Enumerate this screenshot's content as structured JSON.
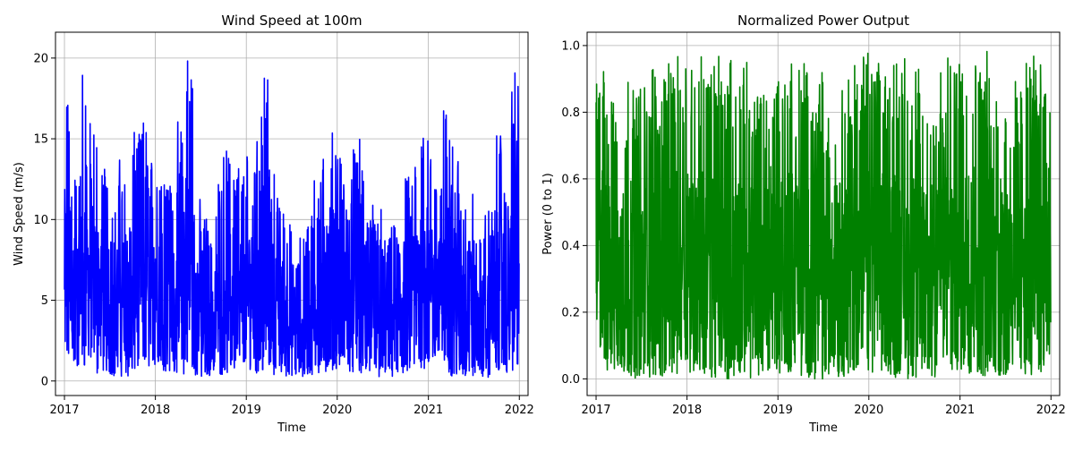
{
  "chart_data": [
    {
      "type": "line",
      "title": "Wind Speed at 100m",
      "xlabel": "Time",
      "ylabel": "Wind Speed (m/s)",
      "x_range": [
        "2016-11-26",
        "2022-02-05"
      ],
      "x_ticks": [
        "2017",
        "2018",
        "2019",
        "2020",
        "2021",
        "2022"
      ],
      "ylim": [
        -0.9,
        21.6
      ],
      "y_ticks": [
        0,
        5,
        10,
        15,
        20
      ],
      "grid": true,
      "color": "#0000ff",
      "series": [
        {
          "x": [
            "2017-01-01",
            "2017-02-01",
            "2017-03-01",
            "2017-04-01",
            "2017-05-01",
            "2017-06-01",
            "2017-07-01",
            "2017-08-01",
            "2017-09-01",
            "2017-10-01",
            "2017-11-01",
            "2017-12-01",
            "2018-01-01",
            "2018-02-01",
            "2018-03-01",
            "2018-04-01",
            "2018-05-01",
            "2018-06-01",
            "2018-07-01",
            "2018-08-01",
            "2018-09-01",
            "2018-10-01",
            "2018-11-01",
            "2018-12-01",
            "2019-01-01",
            "2019-02-01",
            "2019-03-01",
            "2019-04-01",
            "2019-05-01",
            "2019-06-01",
            "2019-07-01",
            "2019-08-01",
            "2019-09-01",
            "2019-10-01",
            "2019-11-01",
            "2019-12-01",
            "2020-01-01",
            "2020-02-01",
            "2020-03-01",
            "2020-04-01",
            "2020-05-01",
            "2020-06-01",
            "2020-07-01",
            "2020-08-01",
            "2020-09-01",
            "2020-10-01",
            "2020-11-01",
            "2020-12-01",
            "2021-01-01",
            "2021-02-01",
            "2021-03-01",
            "2021-04-01",
            "2021-05-01",
            "2021-06-01",
            "2021-07-01",
            "2021-08-01",
            "2021-09-01",
            "2021-10-01",
            "2021-11-01",
            "2021-12-01"
          ],
          "max": [
            17.6,
            13.7,
            20.4,
            16.2,
            15.1,
            13.8,
            11.0,
            13.8,
            11.4,
            15.4,
            16.3,
            14.0,
            14.9,
            13.8,
            12.7,
            16.2,
            20.6,
            11.4,
            10.5,
            8.9,
            12.4,
            14.3,
            14.7,
            13.5,
            14.2,
            15.3,
            18.8,
            13.3,
            11.8,
            9.8,
            7.5,
            9.4,
            10.3,
            12.8,
            14.5,
            16.2,
            14.0,
            12.6,
            15.0,
            13.1,
            11.3,
            10.9,
            8.9,
            9.7,
            10.2,
            12.8,
            13.8,
            18.1,
            14.0,
            13.6,
            17.1,
            14.5,
            11.9,
            13.6,
            8.9,
            10.6,
            11.4,
            15.9,
            11.8,
            19.1
          ],
          "min": [
            1.3,
            0.7,
            0.8,
            1.0,
            0.4,
            0.5,
            0.3,
            0.3,
            0.2,
            0.6,
            0.7,
            0.8,
            0.9,
            0.6,
            0.5,
            0.4,
            0.3,
            0.3,
            0.2,
            0.3,
            0.4,
            0.5,
            0.6,
            0.9,
            0.7,
            0.5,
            0.5,
            0.4,
            0.3,
            0.2,
            0.3,
            0.2,
            0.3,
            0.4,
            0.5,
            0.7,
            0.8,
            0.6,
            0.5,
            0.4,
            0.3,
            0.2,
            0.3,
            0.2,
            0.3,
            0.4,
            0.6,
            0.7,
            0.8,
            0.5,
            0.4,
            0.3,
            0.2,
            0.2,
            0.3,
            0.2,
            0.3,
            0.4,
            0.5,
            0.6
          ]
        }
      ]
    },
    {
      "type": "line",
      "title": "Normalized Power Output",
      "xlabel": "Time",
      "ylabel": "Power (0 to 1)",
      "x_range": [
        "2016-11-26",
        "2022-02-05"
      ],
      "x_ticks": [
        "2017",
        "2018",
        "2019",
        "2020",
        "2021",
        "2022"
      ],
      "ylim": [
        -0.05,
        1.04
      ],
      "y_ticks": [
        "0.0",
        "0.2",
        "0.4",
        "0.6",
        "0.8",
        "1.0"
      ],
      "grid": true,
      "color": "#008000",
      "series": [
        {
          "x": [
            "2017-01-01",
            "2017-02-01",
            "2017-03-01",
            "2017-04-01",
            "2017-05-01",
            "2017-06-01",
            "2017-07-01",
            "2017-08-01",
            "2017-09-01",
            "2017-10-01",
            "2017-11-01",
            "2017-12-01",
            "2018-01-01",
            "2018-02-01",
            "2018-03-01",
            "2018-04-01",
            "2018-05-01",
            "2018-06-01",
            "2018-07-01",
            "2018-08-01",
            "2018-09-01",
            "2018-10-01",
            "2018-11-01",
            "2018-12-01",
            "2019-01-01",
            "2019-02-01",
            "2019-03-01",
            "2019-04-01",
            "2019-05-01",
            "2019-06-01",
            "2019-07-01",
            "2019-08-01",
            "2019-09-01",
            "2019-10-01",
            "2019-11-01",
            "2019-12-01",
            "2020-01-01",
            "2020-02-01",
            "2020-03-01",
            "2020-04-01",
            "2020-05-01",
            "2020-06-01",
            "2020-07-01",
            "2020-08-01",
            "2020-09-01",
            "2020-10-01",
            "2020-11-01",
            "2020-12-01",
            "2021-01-01",
            "2021-02-01",
            "2021-03-01",
            "2021-04-01",
            "2021-05-01",
            "2021-06-01",
            "2021-07-01",
            "2021-08-01",
            "2021-09-01",
            "2021-10-01",
            "2021-11-01",
            "2021-12-01"
          ],
          "max": [
            0.93,
            0.92,
            0.84,
            0.89,
            0.91,
            0.88,
            0.92,
            0.95,
            0.9,
            0.96,
            0.97,
            0.98,
            0.98,
            0.98,
            0.97,
            0.98,
            0.97,
            0.97,
            0.9,
            0.96,
            0.93,
            0.88,
            0.91,
            0.97,
            0.96,
            0.97,
            0.95,
            0.96,
            0.94,
            0.97,
            0.82,
            0.92,
            0.93,
            0.9,
            0.97,
            0.98,
            0.97,
            0.95,
            0.97,
            0.96,
            0.97,
            0.95,
            0.93,
            0.87,
            0.91,
            0.92,
            0.97,
            0.98,
            0.98,
            0.98,
            0.98,
            0.99,
            0.98,
            0.94,
            0.88,
            0.9,
            0.95,
            0.97,
            0.98,
            0.99
          ],
          "min": [
            0.08,
            0.02,
            0.02,
            0.01,
            0.01,
            0.0,
            0.0,
            0.0,
            0.0,
            0.01,
            0.01,
            0.02,
            0.02,
            0.01,
            0.01,
            0.0,
            0.0,
            0.0,
            0.0,
            0.0,
            0.0,
            0.01,
            0.01,
            0.02,
            0.01,
            0.01,
            0.0,
            0.0,
            0.0,
            0.0,
            0.0,
            0.0,
            0.0,
            0.01,
            0.01,
            0.02,
            0.02,
            0.01,
            0.0,
            0.0,
            0.0,
            0.0,
            0.0,
            0.0,
            0.0,
            0.0,
            0.01,
            0.02,
            0.02,
            0.01,
            0.0,
            0.0,
            0.0,
            0.0,
            0.0,
            0.0,
            0.0,
            0.01,
            0.01,
            0.04
          ]
        }
      ]
    }
  ]
}
